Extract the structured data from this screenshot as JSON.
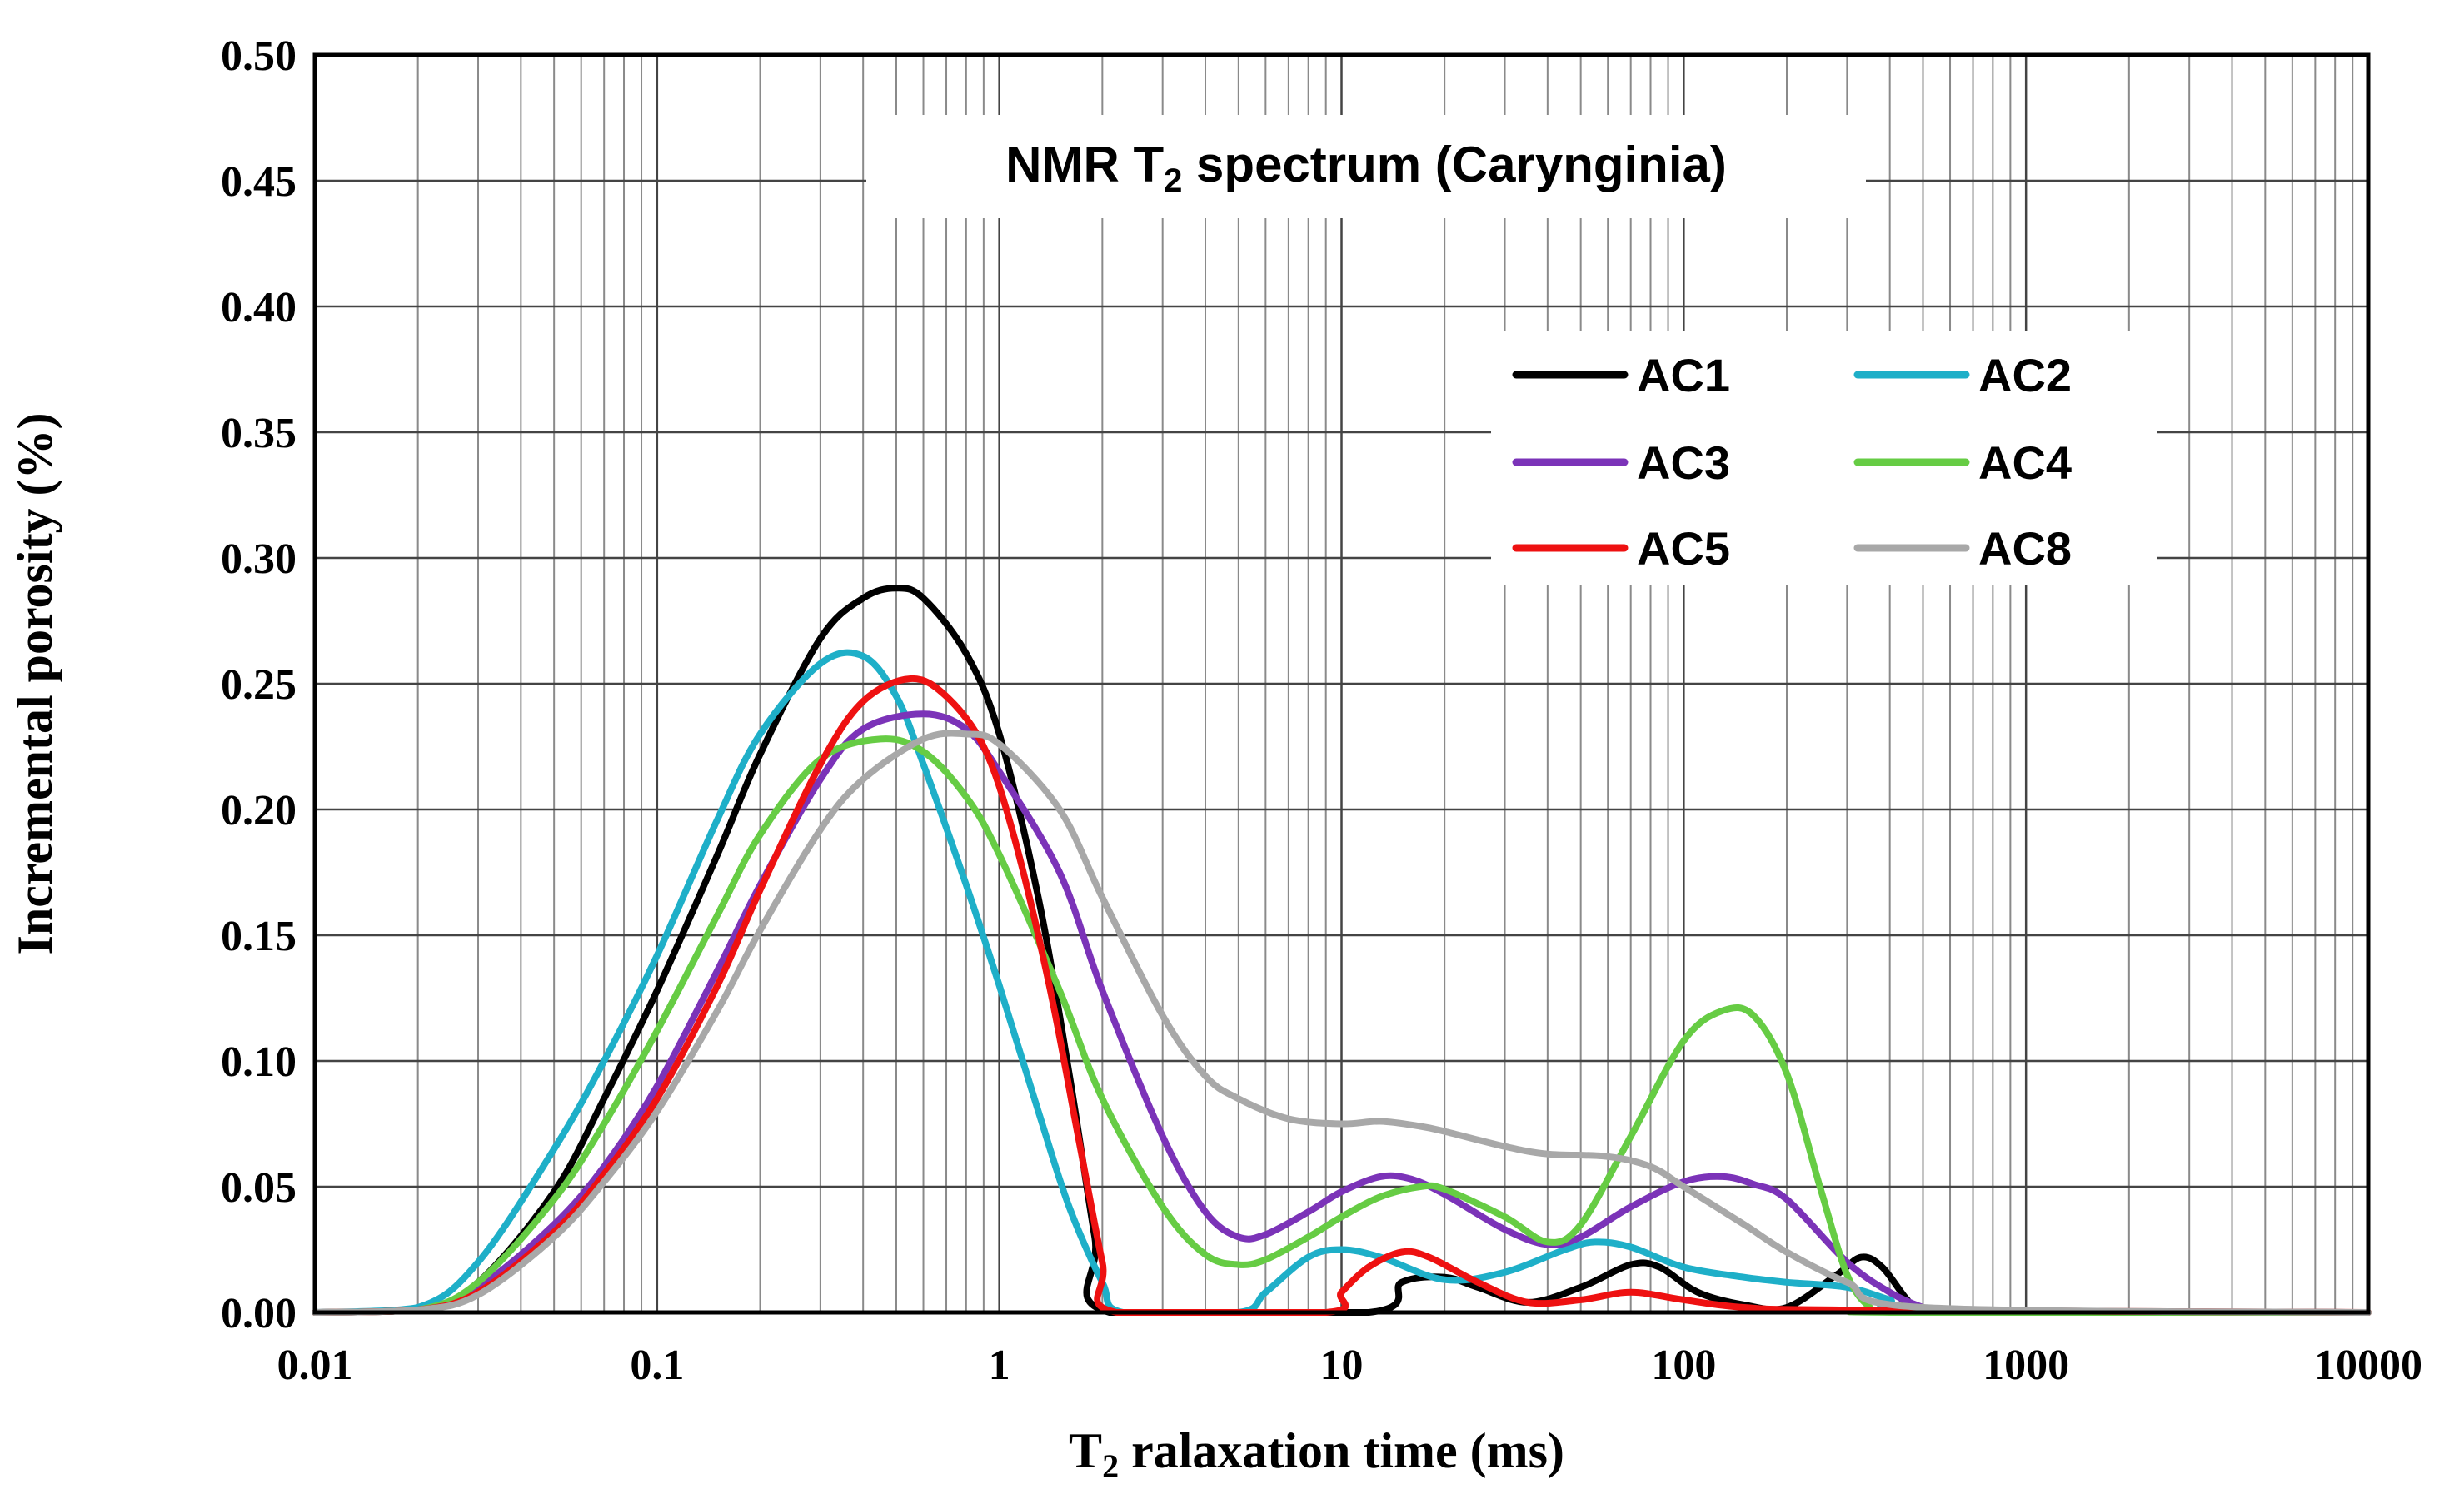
{
  "chart_data": {
    "type": "line",
    "title": "NMR T",
    "title_sub": "2",
    "title_rest": " spectrum (Carynginia)",
    "xlabel_main": "T",
    "xlabel_sub": "2",
    "xlabel_rest": " ralaxation time (ms)",
    "ylabel": "Incremental porosity (%)",
    "xscale": "log",
    "xlim": [
      0.01,
      10000
    ],
    "ylim": [
      0,
      0.5
    ],
    "x_ticks": [
      "0.01",
      "0.1",
      "1",
      "10",
      "100",
      "1000",
      "10000"
    ],
    "y_ticks": [
      "0.00",
      "0.05",
      "0.10",
      "0.15",
      "0.20",
      "0.25",
      "0.30",
      "0.35",
      "0.40",
      "0.45",
      "0.50"
    ],
    "grid": true,
    "legend_position": "upper-right",
    "series": [
      {
        "name": "AC1",
        "color": "#000000",
        "points": [
          [
            0.01,
            0
          ],
          [
            0.02,
            0.001
          ],
          [
            0.03,
            0.012
          ],
          [
            0.05,
            0.048
          ],
          [
            0.07,
            0.085
          ],
          [
            0.1,
            0.128
          ],
          [
            0.15,
            0.182
          ],
          [
            0.2,
            0.222
          ],
          [
            0.3,
            0.268
          ],
          [
            0.4,
            0.284
          ],
          [
            0.5,
            0.288
          ],
          [
            0.6,
            0.284
          ],
          [
            0.8,
            0.262
          ],
          [
            1.0,
            0.23
          ],
          [
            1.3,
            0.165
          ],
          [
            1.6,
            0.095
          ],
          [
            1.9,
            0.03
          ],
          [
            2.1,
            0
          ],
          [
            12,
            0
          ],
          [
            15,
            0.012
          ],
          [
            20,
            0.014
          ],
          [
            25,
            0.01
          ],
          [
            35,
            0.004
          ],
          [
            50,
            0.01
          ],
          [
            70,
            0.019
          ],
          [
            85,
            0.018
          ],
          [
            110,
            0.008
          ],
          [
            150,
            0.003
          ],
          [
            200,
            0.002
          ],
          [
            280,
            0.015
          ],
          [
            330,
            0.022
          ],
          [
            380,
            0.018
          ],
          [
            450,
            0.005
          ],
          [
            500,
            0.001
          ],
          [
            10000,
            0
          ]
        ]
      },
      {
        "name": "AC2",
        "color": "#1EAFC8",
        "points": [
          [
            0.01,
            0
          ],
          [
            0.02,
            0.002
          ],
          [
            0.03,
            0.02
          ],
          [
            0.05,
            0.065
          ],
          [
            0.07,
            0.1
          ],
          [
            0.1,
            0.142
          ],
          [
            0.15,
            0.196
          ],
          [
            0.2,
            0.23
          ],
          [
            0.3,
            0.258
          ],
          [
            0.4,
            0.261
          ],
          [
            0.5,
            0.245
          ],
          [
            0.6,
            0.218
          ],
          [
            0.8,
            0.17
          ],
          [
            1.0,
            0.13
          ],
          [
            1.3,
            0.08
          ],
          [
            1.6,
            0.042
          ],
          [
            2.0,
            0.012
          ],
          [
            2.3,
            0
          ],
          [
            5,
            0
          ],
          [
            6,
            0.008
          ],
          [
            8,
            0.022
          ],
          [
            10,
            0.025
          ],
          [
            13,
            0.022
          ],
          [
            20,
            0.013
          ],
          [
            30,
            0.016
          ],
          [
            45,
            0.025
          ],
          [
            55,
            0.028
          ],
          [
            70,
            0.026
          ],
          [
            100,
            0.018
          ],
          [
            150,
            0.014
          ],
          [
            200,
            0.012
          ],
          [
            300,
            0.01
          ],
          [
            400,
            0.005
          ],
          [
            500,
            0.001
          ],
          [
            10000,
            0
          ]
        ]
      },
      {
        "name": "AC3",
        "color": "#7B33B8",
        "points": [
          [
            0.01,
            0
          ],
          [
            0.02,
            0.001
          ],
          [
            0.03,
            0.01
          ],
          [
            0.05,
            0.035
          ],
          [
            0.07,
            0.058
          ],
          [
            0.1,
            0.09
          ],
          [
            0.15,
            0.136
          ],
          [
            0.2,
            0.17
          ],
          [
            0.3,
            0.212
          ],
          [
            0.4,
            0.232
          ],
          [
            0.6,
            0.238
          ],
          [
            0.8,
            0.232
          ],
          [
            1.0,
            0.215
          ],
          [
            1.5,
            0.175
          ],
          [
            2.0,
            0.128
          ],
          [
            3,
            0.07
          ],
          [
            4,
            0.04
          ],
          [
            5,
            0.03
          ],
          [
            6,
            0.031
          ],
          [
            8,
            0.04
          ],
          [
            10,
            0.048
          ],
          [
            13,
            0.054
          ],
          [
            16,
            0.053
          ],
          [
            20,
            0.047
          ],
          [
            30,
            0.033
          ],
          [
            40,
            0.027
          ],
          [
            50,
            0.03
          ],
          [
            70,
            0.042
          ],
          [
            100,
            0.052
          ],
          [
            130,
            0.054
          ],
          [
            160,
            0.051
          ],
          [
            200,
            0.045
          ],
          [
            300,
            0.02
          ],
          [
            400,
            0.008
          ],
          [
            500,
            0.002
          ],
          [
            600,
            0
          ],
          [
            10000,
            0
          ]
        ]
      },
      {
        "name": "AC4",
        "color": "#66CC44",
        "points": [
          [
            0.01,
            0
          ],
          [
            0.02,
            0.001
          ],
          [
            0.03,
            0.012
          ],
          [
            0.05,
            0.045
          ],
          [
            0.07,
            0.075
          ],
          [
            0.1,
            0.112
          ],
          [
            0.15,
            0.158
          ],
          [
            0.2,
            0.19
          ],
          [
            0.3,
            0.22
          ],
          [
            0.45,
            0.228
          ],
          [
            0.6,
            0.223
          ],
          [
            0.8,
            0.205
          ],
          [
            1.0,
            0.182
          ],
          [
            1.5,
            0.128
          ],
          [
            2.0,
            0.085
          ],
          [
            3,
            0.042
          ],
          [
            4,
            0.023
          ],
          [
            5,
            0.019
          ],
          [
            6,
            0.021
          ],
          [
            8,
            0.03
          ],
          [
            10,
            0.038
          ],
          [
            13,
            0.046
          ],
          [
            17,
            0.05
          ],
          [
            20,
            0.049
          ],
          [
            30,
            0.038
          ],
          [
            40,
            0.028
          ],
          [
            50,
            0.035
          ],
          [
            70,
            0.07
          ],
          [
            100,
            0.108
          ],
          [
            130,
            0.12
          ],
          [
            160,
            0.118
          ],
          [
            200,
            0.095
          ],
          [
            250,
            0.05
          ],
          [
            300,
            0.015
          ],
          [
            350,
            0.002
          ],
          [
            400,
            0
          ],
          [
            10000,
            0
          ]
        ]
      },
      {
        "name": "AC5",
        "color": "#EE1111",
        "points": [
          [
            0.01,
            0
          ],
          [
            0.02,
            0.001
          ],
          [
            0.03,
            0.008
          ],
          [
            0.05,
            0.032
          ],
          [
            0.07,
            0.055
          ],
          [
            0.1,
            0.085
          ],
          [
            0.15,
            0.13
          ],
          [
            0.2,
            0.168
          ],
          [
            0.3,
            0.218
          ],
          [
            0.4,
            0.243
          ],
          [
            0.55,
            0.252
          ],
          [
            0.7,
            0.245
          ],
          [
            0.9,
            0.225
          ],
          [
            1.1,
            0.19
          ],
          [
            1.4,
            0.13
          ],
          [
            1.7,
            0.07
          ],
          [
            2.0,
            0.02
          ],
          [
            2.2,
            0
          ],
          [
            9,
            0
          ],
          [
            10,
            0.008
          ],
          [
            12,
            0.018
          ],
          [
            15,
            0.024
          ],
          [
            18,
            0.022
          ],
          [
            25,
            0.012
          ],
          [
            35,
            0.004
          ],
          [
            50,
            0.005
          ],
          [
            70,
            0.008
          ],
          [
            100,
            0.005
          ],
          [
            150,
            0.002
          ],
          [
            300,
            0.001
          ],
          [
            10000,
            0
          ]
        ]
      },
      {
        "name": "AC8",
        "color": "#A8A8A8",
        "points": [
          [
            0.01,
            0
          ],
          [
            0.02,
            0.001
          ],
          [
            0.03,
            0.007
          ],
          [
            0.05,
            0.03
          ],
          [
            0.07,
            0.052
          ],
          [
            0.1,
            0.08
          ],
          [
            0.15,
            0.12
          ],
          [
            0.2,
            0.152
          ],
          [
            0.3,
            0.192
          ],
          [
            0.4,
            0.212
          ],
          [
            0.6,
            0.228
          ],
          [
            0.8,
            0.23
          ],
          [
            1.0,
            0.226
          ],
          [
            1.5,
            0.2
          ],
          [
            2.0,
            0.165
          ],
          [
            3,
            0.118
          ],
          [
            4,
            0.094
          ],
          [
            5,
            0.085
          ],
          [
            7,
            0.077
          ],
          [
            10,
            0.075
          ],
          [
            13,
            0.076
          ],
          [
            17,
            0.074
          ],
          [
            20,
            0.072
          ],
          [
            30,
            0.066
          ],
          [
            40,
            0.063
          ],
          [
            60,
            0.062
          ],
          [
            80,
            0.058
          ],
          [
            100,
            0.05
          ],
          [
            150,
            0.035
          ],
          [
            200,
            0.024
          ],
          [
            300,
            0.012
          ],
          [
            500,
            0.002
          ],
          [
            10000,
            0
          ]
        ]
      }
    ]
  }
}
